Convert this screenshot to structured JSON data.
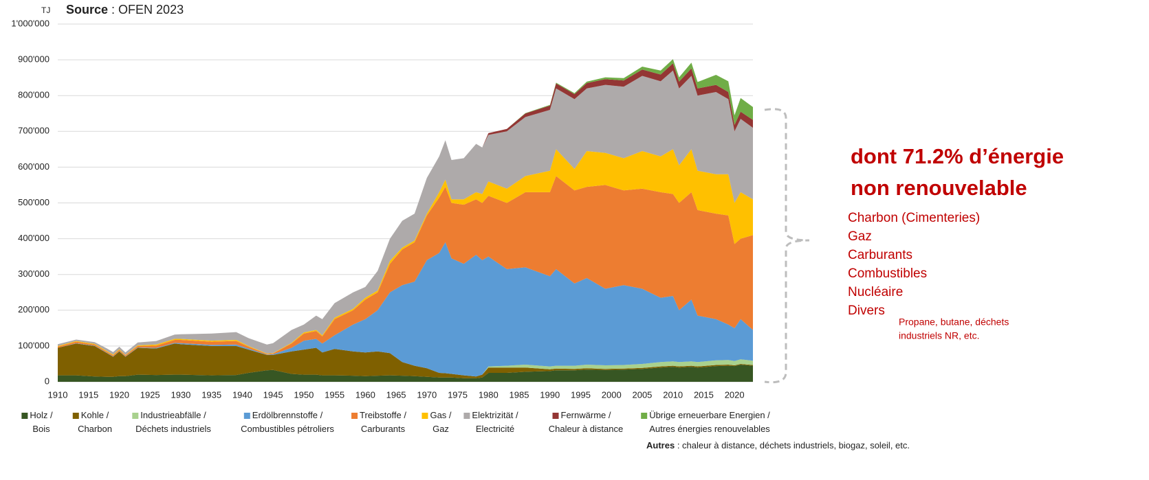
{
  "chart_data": {
    "type": "stacked_area",
    "unit_label": "TJ",
    "source_label": "Source",
    "source_text": ": OFEN 2023",
    "headline": [
      "dont 71.2% d’énergie",
      "non renouvelable"
    ],
    "items": [
      "Charbon (Cimenteries)",
      "Gaz",
      "Carburants",
      "Combustibles",
      "Nucléaire",
      "Divers"
    ],
    "note": [
      "Propane, butane, déchets",
      "industriels NR, etc."
    ],
    "footer_label": "Autres",
    "footer_text": ": chaleur à distance, déchets industriels, biogaz, soleil, etc.",
    "xlim": [
      1910,
      2023
    ],
    "xticks": [
      1910,
      1915,
      1920,
      1925,
      1930,
      1935,
      1940,
      1945,
      1950,
      1955,
      1960,
      1965,
      1970,
      1975,
      1980,
      1985,
      1990,
      1995,
      2000,
      2005,
      2010,
      2015,
      2020
    ],
    "ylim": [
      0,
      1000000
    ],
    "yticks": [
      0,
      {
        "value": 100000,
        "label": "100'000"
      },
      {
        "value": 200000,
        "label": "200'000"
      },
      {
        "value": 300000,
        "label": "300'000"
      },
      {
        "value": 400000,
        "label": "400'000"
      },
      {
        "value": 500000,
        "label": "500'000"
      },
      {
        "value": 600000,
        "label": "600'000"
      },
      {
        "value": 700000,
        "label": "700'000"
      },
      {
        "value": 800000,
        "label": "800'000"
      },
      {
        "value": 900000,
        "label": "900'000"
      },
      {
        "value": 1000000,
        "label": "1'000'000"
      }
    ],
    "grid": true,
    "x": [
      1910,
      1913,
      1916,
      1918,
      1919,
      1920,
      1921,
      1923,
      1926,
      1929,
      1930,
      1935,
      1939,
      1941,
      1944,
      1945,
      1948,
      1950,
      1952,
      1953,
      1955,
      1958,
      1960,
      1962,
      1964,
      1966,
      1968,
      1970,
      1972,
      1973,
      1974,
      1976,
      1978,
      1979,
      1980,
      1983,
      1986,
      1990,
      1991,
      1994,
      1996,
      1999,
      2002,
      2005,
      2008,
      2010,
      2011,
      2013,
      2014,
      2017,
      2019,
      2020,
      2021,
      2023
    ],
    "series": [
      {
        "name": "Holz / Bois",
        "color": "#375623",
        "values": [
          18000,
          18000,
          15000,
          14000,
          14000,
          16000,
          16000,
          20000,
          19000,
          20000,
          20000,
          18000,
          19000,
          25000,
          32000,
          33000,
          22000,
          20000,
          20000,
          18000,
          18000,
          17000,
          16000,
          17000,
          18000,
          17000,
          16000,
          14000,
          12000,
          12000,
          12000,
          10000,
          10000,
          12000,
          25000,
          25000,
          28000,
          30000,
          32000,
          32000,
          34000,
          33000,
          34000,
          36000,
          40000,
          42000,
          40000,
          42000,
          40000,
          44000,
          45000,
          44000,
          48000,
          45000
        ]
      },
      {
        "name": "Kohle / Charbon",
        "color": "#7f6000",
        "values": [
          77000,
          89000,
          85000,
          66000,
          56000,
          69000,
          54000,
          75000,
          74000,
          87000,
          85000,
          82000,
          81000,
          65000,
          43000,
          42000,
          63000,
          70000,
          75000,
          64000,
          74000,
          68000,
          66000,
          68000,
          62000,
          38000,
          29000,
          24000,
          13000,
          12000,
          10000,
          8000,
          5000,
          8000,
          15000,
          15000,
          12000,
          5000,
          5000,
          4000,
          4000,
          3000,
          3000,
          3000,
          3000,
          3000,
          3000,
          3000,
          3000,
          3000,
          3000,
          2000,
          2000,
          2000
        ]
      },
      {
        "name": "Industrieabfälle / Déchets industriels",
        "color": "#a9d18e",
        "values": [
          0,
          0,
          0,
          0,
          0,
          0,
          0,
          0,
          0,
          0,
          0,
          0,
          0,
          0,
          0,
          0,
          0,
          0,
          0,
          0,
          0,
          0,
          0,
          0,
          0,
          0,
          0,
          0,
          0,
          0,
          0,
          0,
          0,
          0,
          3000,
          5000,
          8000,
          8000,
          8000,
          9000,
          10000,
          10000,
          10000,
          11000,
          12000,
          12000,
          12000,
          12000,
          12000,
          13000,
          13000,
          12000,
          13000,
          12000
        ]
      },
      {
        "name": "Erdölbrennstoffe / Combustibles pétroliers",
        "color": "#5b9bd5",
        "values": [
          0,
          1000,
          1000,
          1000,
          1000,
          1000,
          1000,
          1000,
          2000,
          2000,
          3000,
          3000,
          4000,
          3000,
          1000,
          2000,
          10000,
          25000,
          25000,
          25000,
          38000,
          75000,
          93000,
          115000,
          170000,
          215000,
          235000,
          302000,
          335000,
          366000,
          323000,
          312000,
          340000,
          320000,
          307000,
          270000,
          272000,
          252000,
          270000,
          230000,
          242000,
          214000,
          223000,
          210000,
          180000,
          183000,
          145000,
          173000,
          130000,
          115000,
          99000,
          92000,
          112000,
          86000
        ]
      },
      {
        "name": "Treibstoffe / Carburants",
        "color": "#ed7d31",
        "values": [
          3000,
          4000,
          3000,
          3000,
          3000,
          3000,
          3000,
          4000,
          6000,
          8000,
          9000,
          9000,
          10000,
          5000,
          2000,
          2000,
          12000,
          20000,
          22000,
          20000,
          45000,
          40000,
          55000,
          50000,
          80000,
          100000,
          110000,
          125000,
          155000,
          155000,
          155000,
          165000,
          155000,
          160000,
          170000,
          185000,
          210000,
          235000,
          260000,
          260000,
          255000,
          290000,
          265000,
          280000,
          295000,
          285000,
          300000,
          300000,
          295000,
          295000,
          305000,
          235000,
          225000,
          265000
        ]
      },
      {
        "name": "Gas / Gaz",
        "color": "#ffc000",
        "values": [
          2000,
          2000,
          2000,
          2000,
          2000,
          2000,
          1000,
          2000,
          3000,
          3000,
          3000,
          3000,
          3000,
          2000,
          1000,
          1000,
          2000,
          3000,
          3000,
          3000,
          4000,
          4000,
          5000,
          5000,
          8000,
          5000,
          5000,
          5000,
          15000,
          20000,
          10000,
          15000,
          20000,
          25000,
          40000,
          40000,
          45000,
          60000,
          75000,
          60000,
          100000,
          90000,
          90000,
          105000,
          100000,
          125000,
          105000,
          120000,
          110000,
          110000,
          115000,
          115000,
          130000,
          100000
        ]
      },
      {
        "name": "Elektrizität / Electricité",
        "color": "#aeaaaa",
        "values": [
          5000,
          4000,
          5000,
          7000,
          7000,
          7000,
          7000,
          8000,
          10000,
          12000,
          13000,
          20000,
          22000,
          22000,
          25000,
          28000,
          36000,
          22000,
          40000,
          45000,
          41000,
          46000,
          30000,
          55000,
          62000,
          75000,
          75000,
          100000,
          100000,
          110000,
          110000,
          115000,
          135000,
          130000,
          130000,
          160000,
          165000,
          170000,
          170000,
          195000,
          175000,
          190000,
          200000,
          210000,
          210000,
          220000,
          215000,
          205000,
          210000,
          230000,
          210000,
          200000,
          205000,
          200000
        ]
      },
      {
        "name": "Fernwärme / Chaleur à distance",
        "color": "#943634",
        "values": [
          0,
          0,
          0,
          0,
          0,
          0,
          0,
          0,
          0,
          0,
          0,
          0,
          0,
          0,
          0,
          0,
          0,
          0,
          0,
          0,
          0,
          0,
          0,
          0,
          0,
          0,
          0,
          0,
          0,
          0,
          0,
          0,
          0,
          0,
          5000,
          7000,
          10000,
          12000,
          14000,
          14000,
          15000,
          16000,
          17000,
          18000,
          19000,
          20000,
          19000,
          21000,
          20000,
          20000,
          20000,
          18000,
          20000,
          22000
        ]
      },
      {
        "name": "Übrige erneuerbare Energien / Autres énergies renouvelables",
        "color": "#70ad47",
        "values": [
          0,
          0,
          0,
          0,
          0,
          0,
          0,
          0,
          0,
          0,
          0,
          0,
          0,
          0,
          0,
          0,
          0,
          0,
          0,
          0,
          0,
          0,
          0,
          0,
          0,
          0,
          0,
          0,
          0,
          0,
          0,
          0,
          0,
          0,
          0,
          0,
          1000,
          2000,
          2000,
          3000,
          4000,
          5000,
          7000,
          8000,
          11000,
          12000,
          12000,
          16000,
          18000,
          28000,
          30000,
          27000,
          38000,
          36000
        ]
      }
    ]
  }
}
